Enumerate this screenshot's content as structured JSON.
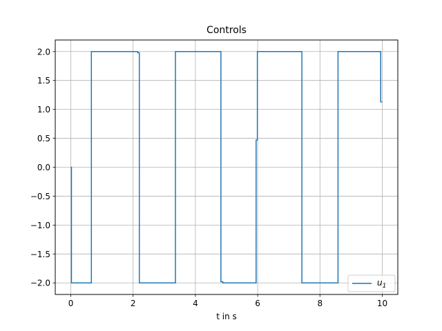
{
  "chart_data": {
    "type": "line",
    "title": "Controls",
    "xlabel": "t in s",
    "ylabel": "",
    "xlim": [
      -0.5,
      10.5
    ],
    "ylim": [
      -2.2,
      2.2
    ],
    "xticks": [
      0,
      2,
      4,
      6,
      8,
      10
    ],
    "xtick_labels": [
      "0",
      "2",
      "4",
      "6",
      "8",
      "10"
    ],
    "yticks": [
      -2.0,
      -1.5,
      -1.0,
      -0.5,
      0.0,
      0.5,
      1.0,
      1.5,
      2.0
    ],
    "ytick_labels": [
      "−2.0",
      "−1.5",
      "−1.0",
      "−0.5",
      "0.0",
      "0.5",
      "1.0",
      "1.5",
      "2.0"
    ],
    "grid": true,
    "legend_position": "lower-right",
    "series": [
      {
        "name": "u_1",
        "legend_main": "u",
        "legend_sub": "1",
        "color": "#1f77b4",
        "step": true,
        "x": [
          0.0,
          0.02,
          0.66,
          0.72,
          2.15,
          2.2,
          3.36,
          4.82,
          4.88,
          5.95,
          5.99,
          7.42,
          8.58,
          9.95,
          10.0
        ],
        "y": [
          0.0,
          -2.0,
          2.0,
          2.0,
          1.98,
          -2.0,
          2.0,
          -1.98,
          -2.0,
          0.47,
          2.0,
          -2.0,
          2.0,
          1.13,
          1.13
        ]
      }
    ]
  }
}
